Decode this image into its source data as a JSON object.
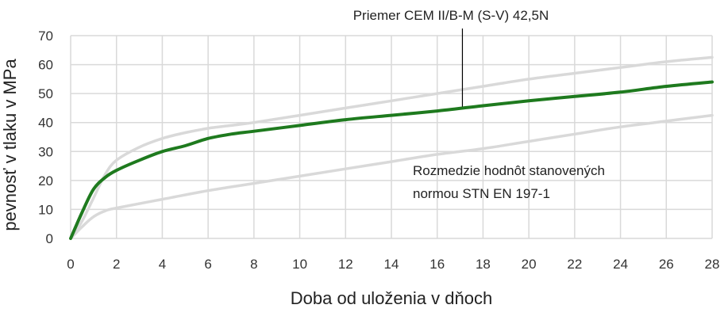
{
  "chart_data": {
    "type": "line",
    "title": "",
    "xlabel": "Doba od uloženia v dňoch",
    "ylabel": "pevnosť v tlaku  v MPa",
    "xlim": [
      0,
      28
    ],
    "ylim": [
      0,
      70
    ],
    "x_ticks": [
      "0",
      "2",
      "4",
      "6",
      "8",
      "10",
      "12",
      "14",
      "16",
      "18",
      "20",
      "22",
      "24",
      "26",
      "28"
    ],
    "y_ticks": [
      "0",
      "10",
      "20",
      "30",
      "40",
      "50",
      "60",
      "70"
    ],
    "grid": true,
    "legend": "none",
    "annotations": {
      "example_label": "Priemer CEM II/B-M (S-V) 42,5N",
      "range_label_line1": "Rozmedzie hodnôt stanovených",
      "range_label_line2": "normou STN EN 197-1"
    },
    "colors": {
      "main": "#1e7a1e",
      "bounds": "#d9d9d9",
      "grid": "#d9d9d9"
    },
    "series": [
      {
        "role": "example",
        "color": "#1e7a1e",
        "x": [
          0,
          0.5,
          1,
          1.5,
          2,
          3,
          4,
          5,
          6,
          7,
          8,
          10,
          12,
          14,
          16,
          18,
          20,
          22,
          24,
          26,
          28
        ],
        "y": [
          0,
          9,
          17,
          21,
          23.5,
          27,
          30,
          32,
          34.5,
          36,
          37,
          39,
          41,
          42.5,
          44,
          45.8,
          47.5,
          49,
          50.5,
          52.5,
          54
        ]
      },
      {
        "role": "upper-bound",
        "color": "#d9d9d9",
        "x": [
          0,
          0.5,
          1,
          1.5,
          2,
          3,
          4,
          5,
          6,
          7,
          8,
          10,
          12,
          14,
          16,
          18,
          20,
          22,
          24,
          26,
          28
        ],
        "y": [
          0,
          6,
          14,
          22,
          27,
          31.5,
          34.5,
          36.5,
          38,
          39,
          40,
          42.5,
          45,
          47.5,
          50,
          52.5,
          55,
          57,
          59,
          61,
          62.5
        ]
      },
      {
        "role": "lower-bound",
        "color": "#d9d9d9",
        "x": [
          0,
          0.5,
          1,
          1.5,
          2,
          4,
          6,
          8,
          10,
          12,
          14,
          16,
          18,
          20,
          22,
          24,
          26,
          28
        ],
        "y": [
          0,
          4,
          7.5,
          9.5,
          10.5,
          13.5,
          16.5,
          19,
          21.5,
          24,
          26.5,
          29,
          31,
          33.5,
          36,
          38.5,
          40.5,
          42.5
        ]
      }
    ]
  }
}
